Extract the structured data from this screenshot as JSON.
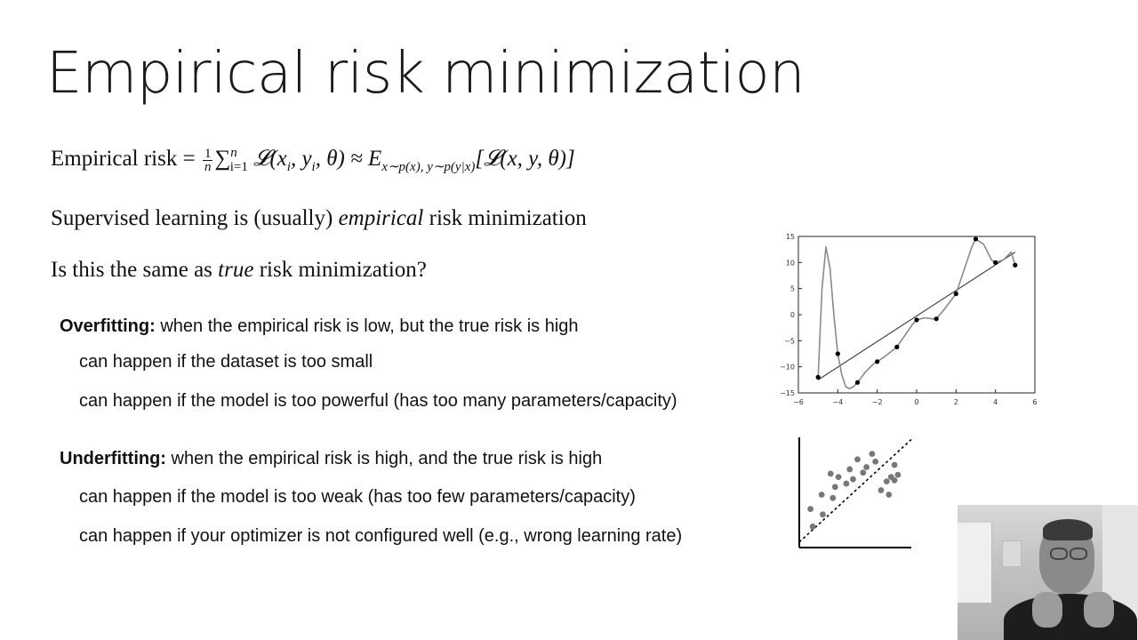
{
  "slide": {
    "title": "Empirical risk minimization"
  },
  "formula": {
    "lhs": "Empirical risk",
    "frac_num": "1",
    "frac_den": "n",
    "sum_sup": "n",
    "sum_sub": "i=1",
    "sum_term": "𝓛(x",
    "term_rest": ", y",
    "term_close": ", θ) ≈ E",
    "expect_sub": "x∼p(x), y∼p(y|x)",
    "expect_body": "[𝓛(x, y, θ)]"
  },
  "statements": {
    "supervised_pre": "Supervised learning is (usually) ",
    "supervised_em": "empirical",
    "supervised_post": " risk minimization",
    "question_pre": "Is this the same as ",
    "question_em": "true",
    "question_post": " risk minimization?"
  },
  "overfitting": {
    "term": "Overfitting:",
    "definition": " when the empirical risk is low, but the true risk is high",
    "reasons": [
      "can happen if the dataset is too small",
      "can happen if the model is too powerful (has too many parameters/capacity)"
    ]
  },
  "underfitting": {
    "term": "Underfitting:",
    "definition": " when the empirical risk is high, and the true risk is high",
    "reasons": [
      "can happen if the model is too weak (has too few parameters/capacity)",
      "can happen if your optimizer is not configured well (e.g., wrong learning rate)"
    ]
  },
  "chart_data": [
    {
      "type": "scatter",
      "title": "",
      "xlabel": "",
      "ylabel": "",
      "xlim": [
        -6,
        6
      ],
      "ylim": [
        -15,
        15
      ],
      "x_ticks": [
        "−6",
        "−4",
        "−2",
        "0",
        "2",
        "4",
        "6"
      ],
      "y_ticks": [
        "15",
        "10",
        "5",
        "0",
        "−5",
        "−10",
        "−15"
      ],
      "series": [
        {
          "kind": "points",
          "x": [
            -5,
            -4,
            -3,
            -2,
            -1,
            0,
            1,
            2,
            3,
            4,
            5
          ],
          "y": [
            -12,
            -7.5,
            -13,
            -9,
            -6.2,
            -1,
            -0.8,
            4,
            14.5,
            10,
            9.5
          ]
        },
        {
          "kind": "linear-fit",
          "x": [
            -5,
            5
          ],
          "y": [
            -12.5,
            12
          ]
        },
        {
          "kind": "high-degree-fit",
          "x": [
            -5,
            -4.8,
            -4.6,
            -4.4,
            -4.2,
            -4,
            -3.8,
            -3.6,
            -3.4,
            -3.2,
            -3,
            -2.6,
            -2.2,
            -2,
            -1.6,
            -1.2,
            -1,
            -0.6,
            -0.2,
            0,
            0.4,
            0.8,
            1,
            1.4,
            1.8,
            2,
            2.4,
            2.8,
            3,
            3.4,
            3.8,
            4,
            4.4,
            4.8,
            5
          ],
          "y": [
            -12,
            5,
            13,
            9,
            0,
            -7.5,
            -11.5,
            -13.8,
            -14.2,
            -13.8,
            -13,
            -11,
            -9.5,
            -9,
            -8,
            -6.8,
            -6.2,
            -4,
            -1.8,
            -1,
            -0.6,
            -0.8,
            -0.8,
            1,
            3,
            4,
            8.5,
            13,
            14.5,
            13.5,
            10.5,
            10,
            10.5,
            12,
            9.5
          ]
        }
      ]
    },
    {
      "type": "scatter",
      "title": "",
      "xlabel": "",
      "ylabel": "",
      "xlim": [
        0,
        10
      ],
      "ylim": [
        0,
        10
      ],
      "series": [
        {
          "kind": "points",
          "x": [
            1.2,
            1.0,
            2.1,
            2.0,
            3.0,
            2.8,
            3.5,
            3.2,
            4.2,
            4.5,
            4.8,
            5.2,
            5.7,
            6.0,
            6.5,
            6.8,
            7.3,
            7.8,
            8.2,
            8.5,
            8.8,
            8.5,
            8.0
          ],
          "y": [
            1.9,
            3.5,
            3.0,
            4.8,
            4.5,
            6.7,
            6.4,
            5.5,
            5.8,
            7.1,
            6.2,
            8.0,
            6.8,
            7.3,
            8.5,
            7.8,
            5.2,
            6.0,
            6.4,
            7.5,
            6.6,
            6.1,
            4.8
          ]
        },
        {
          "kind": "dotted-linear-fit",
          "x": [
            0,
            10
          ],
          "y": [
            0.5,
            9.8
          ]
        }
      ]
    }
  ]
}
